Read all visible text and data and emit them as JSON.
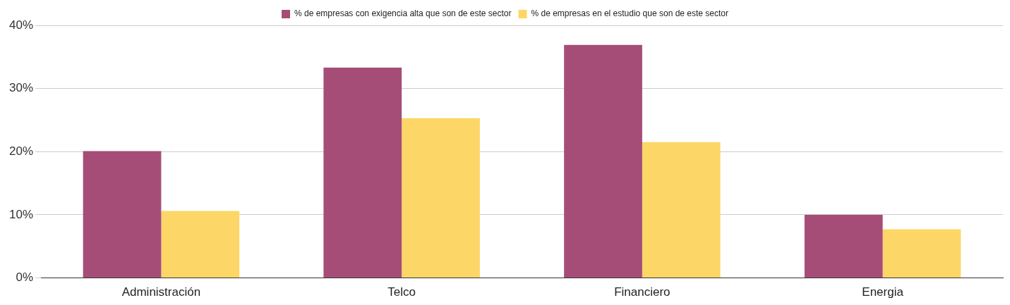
{
  "chart_data": {
    "type": "bar",
    "categories": [
      "Administración",
      "Telco",
      "Financiero",
      "Energia"
    ],
    "series": [
      {
        "name": "% de empresas con exigencia alta que son de este sector",
        "color": "#a54d77",
        "values": [
          20.1,
          33.3,
          36.9,
          10.0
        ]
      },
      {
        "name": "% de empresas en el estudio que son de este sector",
        "color": "#fcd667",
        "values": [
          10.6,
          25.3,
          21.5,
          7.7
        ]
      }
    ],
    "ylim": [
      0,
      40
    ],
    "yticks": [
      {
        "value": 0,
        "label": "0%"
      },
      {
        "value": 10,
        "label": "10%"
      },
      {
        "value": 20,
        "label": "20%"
      },
      {
        "value": 30,
        "label": "30%"
      },
      {
        "value": 40,
        "label": "40%"
      }
    ],
    "grid": "y",
    "legend": "top"
  }
}
